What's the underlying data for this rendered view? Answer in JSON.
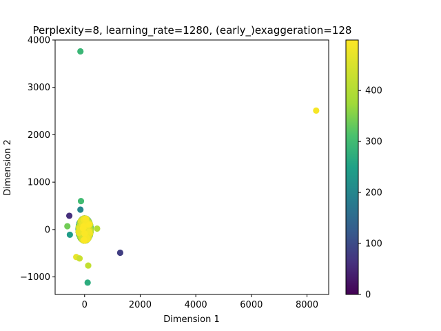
{
  "chart_data": {
    "type": "scatter",
    "title": "Perplexity=8, learning_rate=1280, (early_)exaggeration=128",
    "xlabel": "Dimension 1",
    "ylabel": "Dimension 2",
    "xlim": [
      -1060,
      8780
    ],
    "ylim": [
      -1370,
      4000
    ],
    "x_ticks": [
      0,
      2000,
      4000,
      6000,
      8000
    ],
    "x_tick_labels": [
      "0",
      "2000",
      "4000",
      "6000",
      "8000"
    ],
    "y_ticks": [
      -1000,
      0,
      1000,
      2000,
      3000,
      4000
    ],
    "y_tick_labels": [
      "−1000",
      "0",
      "1000",
      "2000",
      "3000",
      "4000"
    ],
    "grid": false,
    "colormap": "viridis",
    "colorbar": {
      "min": 0,
      "max": 499,
      "ticks": [
        0,
        100,
        200,
        300,
        400
      ],
      "tick_labels": [
        "0",
        "100",
        "200",
        "300",
        "400"
      ]
    },
    "outliers": [
      {
        "x": -150,
        "y": 3760,
        "c": 290
      },
      {
        "x": 8330,
        "y": 2510,
        "c": 490
      },
      {
        "x": -130,
        "y": 600,
        "c": 300
      },
      {
        "x": -550,
        "y": 290,
        "c": 60
      },
      {
        "x": -620,
        "y": 70,
        "c": 340
      },
      {
        "x": -530,
        "y": -110,
        "c": 240
      },
      {
        "x": 1280,
        "y": -490,
        "c": 80
      },
      {
        "x": -300,
        "y": -580,
        "c": 470
      },
      {
        "x": -180,
        "y": -610,
        "c": 430
      },
      {
        "x": 130,
        "y": -760,
        "c": 420
      },
      {
        "x": 110,
        "y": -1120,
        "c": 270
      },
      {
        "x": 450,
        "y": 20,
        "c": 400
      },
      {
        "x": -150,
        "y": 420,
        "c": 200
      }
    ],
    "cluster": {
      "center_x": 0,
      "center_y": 0,
      "spread_x": 240,
      "spread_y": 260,
      "count": 487
    }
  }
}
